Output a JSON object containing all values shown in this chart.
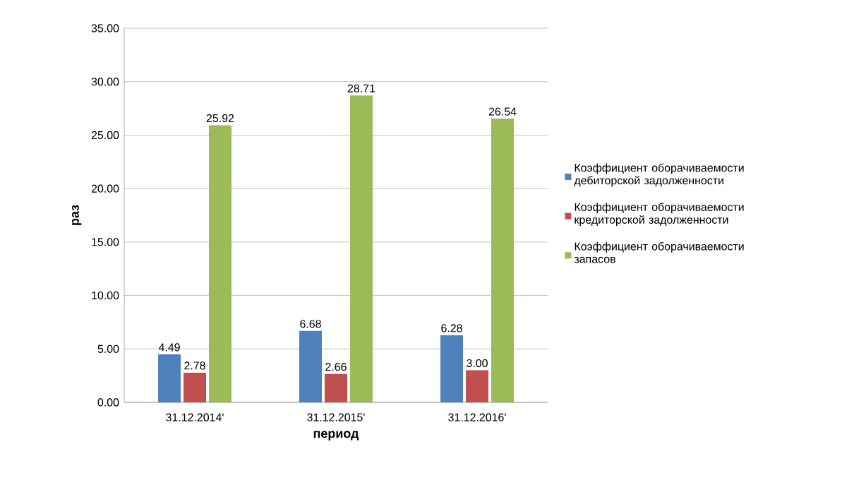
{
  "chart_data": {
    "type": "bar",
    "xlabel": "период",
    "ylabel": "раз",
    "categories": [
      "31.12.2014'",
      "31.12.2015'",
      "31.12.2016'"
    ],
    "series": [
      {
        "name": "Коэффициент оборачиваемости дебиторской задолженности",
        "color": "#4f81bd",
        "values": [
          4.49,
          6.68,
          6.28
        ],
        "value_labels": [
          "4.49",
          "6.68",
          "6.28"
        ]
      },
      {
        "name": "Коэффициент оборачиваемости кредиторской задолженности",
        "color": "#c0504d",
        "values": [
          2.78,
          2.66,
          3.0
        ],
        "value_labels": [
          "2.78",
          "2.66",
          "3.00"
        ]
      },
      {
        "name": "Коэффициент оборачиваемости запасов",
        "color": "#9bbb59",
        "values": [
          25.92,
          28.71,
          26.54
        ],
        "value_labels": [
          "25.92",
          "28.71",
          "26.54"
        ]
      }
    ],
    "ylim": [
      0,
      35
    ],
    "yticks": [
      {
        "value": 0,
        "label": "0.00"
      },
      {
        "value": 5,
        "label": "5.00"
      },
      {
        "value": 10,
        "label": "10.00"
      },
      {
        "value": 15,
        "label": "15.00"
      },
      {
        "value": 20,
        "label": "20.00"
      },
      {
        "value": 25,
        "label": "25.00"
      },
      {
        "value": 30,
        "label": "30.00"
      },
      {
        "value": 35,
        "label": "35.00"
      }
    ],
    "grid": "y",
    "legend": "right"
  }
}
